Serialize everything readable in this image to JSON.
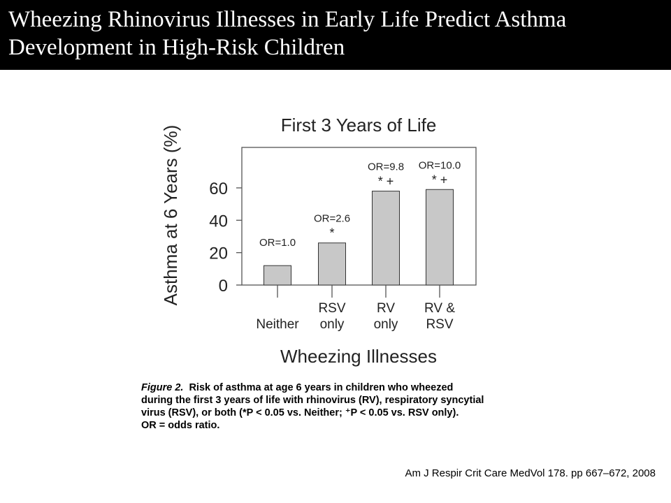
{
  "slide": {
    "title_line1": "Wheezing Rhinovirus Illnesses in Early Life Predict Asthma",
    "title_line2": "Development in High-Risk Children",
    "citation": "Am J Respir Crit Care MedVol 178. pp 667–672, 2008"
  },
  "caption": {
    "label": "Figure 2.",
    "line1": "Risk of asthma at age 6 years in children who wheezed",
    "line2": "during the first 3 years of life with rhinovirus (RV), respiratory syncytial",
    "line3": "virus (RSV), or both (*P < 0.05 vs. Neither; ⁺P < 0.05 vs. RSV only).",
    "line4": "OR = odds ratio."
  },
  "chart_data": {
    "type": "bar",
    "title": "First 3 Years of Life",
    "xlabel": "Wheezing Illnesses",
    "ylabel": "Asthma at 6 Years (%)",
    "categories": [
      [
        "Neither"
      ],
      [
        "RSV",
        "only"
      ],
      [
        "RV",
        "only"
      ],
      [
        "RV &",
        "RSV"
      ]
    ],
    "values": [
      12,
      26,
      58,
      59
    ],
    "odds_ratios": [
      "OR=1.0",
      "OR=2.6",
      "OR=9.8",
      "OR=10.0"
    ],
    "significance": [
      "",
      "*",
      "* +",
      "* +"
    ],
    "ylim": [
      0,
      85
    ],
    "yticks": [
      0,
      20,
      40,
      60
    ],
    "bar_color": "#c8c8c8",
    "grid": false
  }
}
